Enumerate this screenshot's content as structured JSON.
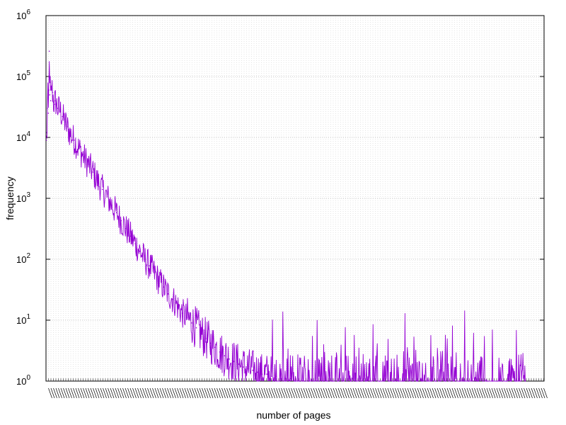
{
  "chart_data": {
    "type": "line",
    "title": "",
    "xlabel": "number of pages",
    "ylabel": "frequency",
    "yscale": "log",
    "ylim": [
      1,
      1000000
    ],
    "y_ticks": [
      {
        "base": "10",
        "exp": "0"
      },
      {
        "base": "10",
        "exp": "1"
      },
      {
        "base": "10",
        "exp": "2"
      },
      {
        "base": "10",
        "exp": "3"
      },
      {
        "base": "10",
        "exp": "4"
      },
      {
        "base": "10",
        "exp": "5"
      },
      {
        "base": "10",
        "exp": "6"
      }
    ],
    "x_tick_labels_note": "x-axis tick labels are densely overlapping and illegible",
    "grid": true,
    "grid_style": "dotted",
    "series": [
      {
        "color": "#9400d3",
        "x": [
          1,
          2,
          3,
          4,
          5,
          6,
          7,
          8,
          9,
          10,
          12,
          14,
          16,
          18,
          20,
          25,
          30,
          35,
          40,
          45,
          50,
          60,
          70,
          80,
          90,
          100,
          110,
          120,
          130,
          140,
          150,
          160,
          170,
          180,
          190,
          200,
          210,
          220,
          230,
          240,
          250,
          260,
          270,
          280,
          290,
          300,
          310,
          320,
          330,
          340,
          350,
          360,
          370,
          380,
          390,
          400,
          410,
          420,
          430,
          440,
          450,
          460,
          470,
          480,
          490,
          500,
          510,
          520,
          530,
          540,
          550,
          560,
          570,
          580,
          590,
          600,
          610,
          620,
          630,
          640,
          650,
          660,
          670,
          680,
          690,
          700,
          710,
          720,
          730,
          740,
          750,
          760,
          770,
          780,
          790,
          800,
          810,
          820,
          830,
          840,
          850,
          860,
          870,
          880,
          890,
          900,
          910,
          920,
          930,
          940,
          950,
          960,
          970,
          980,
          990,
          1000,
          1010,
          1020
        ],
        "y": [
          9000,
          12000,
          30000,
          45000,
          25000,
          60000,
          260000,
          50000,
          80000,
          40000,
          70000,
          55000,
          38000,
          35000,
          40000,
          30000,
          28000,
          22000,
          18000,
          15000,
          12000,
          9000,
          6500,
          4800,
          3600,
          2700,
          1900,
          1400,
          1050,
          780,
          580,
          430,
          320,
          240,
          180,
          135,
          100,
          78,
          60,
          45,
          35,
          27,
          22,
          17,
          13,
          11,
          9,
          7.5,
          6,
          5,
          4.2,
          3.6,
          3,
          2.6,
          2.3,
          2.1,
          1.9,
          1.7,
          1.6,
          1.5,
          1.4,
          1.3,
          1.3,
          1.2,
          1.2,
          1.1,
          1.1,
          1.1,
          1,
          1,
          1,
          1,
          1,
          1,
          1,
          1,
          1,
          1,
          1,
          1,
          1,
          1,
          1,
          1,
          1,
          1,
          1,
          1,
          1,
          1,
          1,
          1,
          1,
          1,
          1,
          1,
          1,
          1,
          1,
          1,
          1,
          1,
          1,
          1,
          1,
          1,
          1,
          1,
          1,
          1,
          1,
          1,
          1,
          1,
          1,
          1,
          1,
          1
        ]
      }
    ]
  }
}
